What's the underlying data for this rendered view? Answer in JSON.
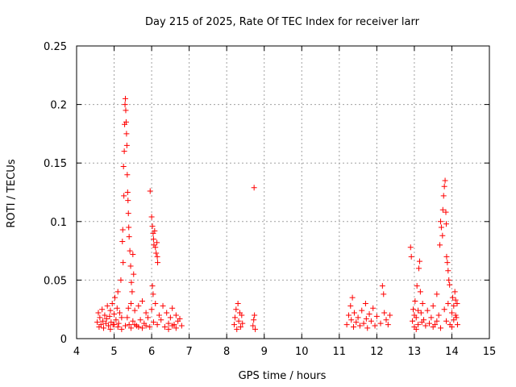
{
  "chart_data": {
    "type": "scatter",
    "title": "Day 215 of 2025, Rate Of TEC Index for receiver larr",
    "xlabel": "GPS time / hours",
    "ylabel": "ROTI / TECUs",
    "xlim": [
      4,
      15
    ],
    "ylim": [
      0,
      0.25
    ],
    "x_ticks": [
      "4",
      "5",
      "6",
      "7",
      "8",
      "9",
      "10",
      "11",
      "12",
      "13",
      "14",
      "15"
    ],
    "y_ticks": [
      "0",
      "0.05",
      "0.1",
      "0.15",
      "0.2",
      "0.25"
    ],
    "grid": true,
    "marker": "+",
    "color": "#ff0000",
    "series": [
      {
        "name": "ROTI",
        "points": [
          [
            4.55,
            0.014
          ],
          [
            4.58,
            0.022
          ],
          [
            4.6,
            0.01
          ],
          [
            4.62,
            0.018
          ],
          [
            4.65,
            0.012
          ],
          [
            4.68,
            0.025
          ],
          [
            4.7,
            0.015
          ],
          [
            4.72,
            0.009
          ],
          [
            4.75,
            0.02
          ],
          [
            4.78,
            0.013
          ],
          [
            4.8,
            0.017
          ],
          [
            4.82,
            0.028
          ],
          [
            4.85,
            0.011
          ],
          [
            4.88,
            0.019
          ],
          [
            4.9,
            0.024
          ],
          [
            4.92,
            0.014
          ],
          [
            4.95,
            0.03
          ],
          [
            4.97,
            0.012
          ],
          [
            5.0,
            0.021
          ],
          [
            5.02,
            0.035
          ],
          [
            5.05,
            0.016
          ],
          [
            5.08,
            0.026
          ],
          [
            5.1,
            0.04
          ],
          [
            5.12,
            0.013
          ],
          [
            5.15,
            0.022
          ],
          [
            5.18,
            0.05
          ],
          [
            5.2,
            0.018
          ],
          [
            5.22,
            0.083
          ],
          [
            5.23,
            0.093
          ],
          [
            5.24,
            0.065
          ],
          [
            5.25,
            0.147
          ],
          [
            5.26,
            0.122
          ],
          [
            5.27,
            0.16
          ],
          [
            5.28,
            0.183
          ],
          [
            5.29,
            0.2
          ],
          [
            5.3,
            0.205
          ],
          [
            5.31,
            0.195
          ],
          [
            5.32,
            0.185
          ],
          [
            5.33,
            0.175
          ],
          [
            5.34,
            0.165
          ],
          [
            5.35,
            0.14
          ],
          [
            5.36,
            0.125
          ],
          [
            5.37,
            0.118
          ],
          [
            5.38,
            0.107
          ],
          [
            5.39,
            0.095
          ],
          [
            5.4,
            0.087
          ],
          [
            5.42,
            0.075
          ],
          [
            5.44,
            0.062
          ],
          [
            5.46,
            0.048
          ],
          [
            5.48,
            0.04
          ],
          [
            5.5,
            0.072
          ],
          [
            5.52,
            0.055
          ],
          [
            5.35,
            0.018
          ],
          [
            5.38,
            0.026
          ],
          [
            5.4,
            0.012
          ],
          [
            5.45,
            0.03
          ],
          [
            5.5,
            0.015
          ],
          [
            5.55,
            0.024
          ],
          [
            5.6,
            0.011
          ],
          [
            5.65,
            0.028
          ],
          [
            5.7,
            0.016
          ],
          [
            5.75,
            0.032
          ],
          [
            5.8,
            0.013
          ],
          [
            5.85,
            0.022
          ],
          [
            5.9,
            0.018
          ],
          [
            5.95,
            0.01
          ],
          [
            5.96,
            0.126
          ],
          [
            6.0,
            0.104
          ],
          [
            6.02,
            0.096
          ],
          [
            6.04,
            0.09
          ],
          [
            6.05,
            0.085
          ],
          [
            6.06,
            0.08
          ],
          [
            6.08,
            0.092
          ],
          [
            6.1,
            0.078
          ],
          [
            6.12,
            0.073
          ],
          [
            6.14,
            0.082
          ],
          [
            6.15,
            0.07
          ],
          [
            6.16,
            0.065
          ],
          [
            6.02,
            0.045
          ],
          [
            6.04,
            0.038
          ],
          [
            6.0,
            0.025
          ],
          [
            6.05,
            0.014
          ],
          [
            6.1,
            0.03
          ],
          [
            6.15,
            0.012
          ],
          [
            6.2,
            0.02
          ],
          [
            6.25,
            0.016
          ],
          [
            6.3,
            0.028
          ],
          [
            6.35,
            0.01
          ],
          [
            6.4,
            0.022
          ],
          [
            6.45,
            0.013
          ],
          [
            6.5,
            0.018
          ],
          [
            6.55,
            0.026
          ],
          [
            6.6,
            0.012
          ],
          [
            6.65,
            0.02
          ],
          [
            6.7,
            0.015
          ],
          [
            6.75,
            0.017
          ],
          [
            5.1,
            0.01
          ],
          [
            5.2,
            0.008
          ],
          [
            5.3,
            0.011
          ],
          [
            5.45,
            0.009
          ],
          [
            5.55,
            0.012
          ],
          [
            5.65,
            0.01
          ],
          [
            5.75,
            0.009
          ],
          [
            5.85,
            0.011
          ],
          [
            4.9,
            0.008
          ],
          [
            5.0,
            0.012
          ],
          [
            6.45,
            0.008
          ],
          [
            6.55,
            0.011
          ],
          [
            6.65,
            0.009
          ],
          [
            6.8,
            0.011
          ],
          [
            8.2,
            0.012
          ],
          [
            8.22,
            0.018
          ],
          [
            8.25,
            0.025
          ],
          [
            8.27,
            0.008
          ],
          [
            8.3,
            0.03
          ],
          [
            8.32,
            0.015
          ],
          [
            8.35,
            0.022
          ],
          [
            8.37,
            0.01
          ],
          [
            8.4,
            0.02
          ],
          [
            8.42,
            0.013
          ],
          [
            8.7,
            0.011
          ],
          [
            8.72,
            0.016
          ],
          [
            8.74,
            0.02
          ],
          [
            8.76,
            0.008
          ],
          [
            8.73,
            0.129
          ],
          [
            11.2,
            0.012
          ],
          [
            11.25,
            0.02
          ],
          [
            11.3,
            0.028
          ],
          [
            11.32,
            0.016
          ],
          [
            11.35,
            0.035
          ],
          [
            11.38,
            0.01
          ],
          [
            11.4,
            0.022
          ],
          [
            11.45,
            0.014
          ],
          [
            11.5,
            0.018
          ],
          [
            11.55,
            0.011
          ],
          [
            11.6,
            0.024
          ],
          [
            11.65,
            0.013
          ],
          [
            11.7,
            0.03
          ],
          [
            11.72,
            0.017
          ],
          [
            11.75,
            0.009
          ],
          [
            11.8,
            0.021
          ],
          [
            11.85,
            0.015
          ],
          [
            11.9,
            0.026
          ],
          [
            11.95,
            0.011
          ],
          [
            12.0,
            0.019
          ],
          [
            12.1,
            0.013
          ],
          [
            12.15,
            0.045
          ],
          [
            12.18,
            0.038
          ],
          [
            12.2,
            0.022
          ],
          [
            12.25,
            0.016
          ],
          [
            12.3,
            0.012
          ],
          [
            12.35,
            0.02
          ],
          [
            12.9,
            0.078
          ],
          [
            12.92,
            0.07
          ],
          [
            12.95,
            0.015
          ],
          [
            12.97,
            0.025
          ],
          [
            13.0,
            0.01
          ],
          [
            13.02,
            0.032
          ],
          [
            13.05,
            0.018
          ],
          [
            13.07,
            0.045
          ],
          [
            13.1,
            0.012
          ],
          [
            13.12,
            0.06
          ],
          [
            13.14,
            0.066
          ],
          [
            13.16,
            0.04
          ],
          [
            13.18,
            0.022
          ],
          [
            13.2,
            0.014
          ],
          [
            13.22,
            0.03
          ],
          [
            13.25,
            0.016
          ],
          [
            13.3,
            0.011
          ],
          [
            13.35,
            0.024
          ],
          [
            13.4,
            0.013
          ],
          [
            13.45,
            0.018
          ],
          [
            13.5,
            0.028
          ],
          [
            13.55,
            0.012
          ],
          [
            13.6,
            0.038
          ],
          [
            13.65,
            0.02
          ],
          [
            13.68,
            0.08
          ],
          [
            13.7,
            0.1
          ],
          [
            13.72,
            0.095
          ],
          [
            13.75,
            0.088
          ],
          [
            13.76,
            0.11
          ],
          [
            13.78,
            0.122
          ],
          [
            13.8,
            0.13
          ],
          [
            13.82,
            0.135
          ],
          [
            13.84,
            0.108
          ],
          [
            13.85,
            0.098
          ],
          [
            13.86,
            0.07
          ],
          [
            13.88,
            0.065
          ],
          [
            13.9,
            0.058
          ],
          [
            13.92,
            0.05
          ],
          [
            13.94,
            0.046
          ],
          [
            13.8,
            0.025
          ],
          [
            13.85,
            0.015
          ],
          [
            13.9,
            0.03
          ],
          [
            13.95,
            0.012
          ],
          [
            14.0,
            0.022
          ],
          [
            14.02,
            0.035
          ],
          [
            14.05,
            0.028
          ],
          [
            14.08,
            0.04
          ],
          [
            14.1,
            0.033
          ],
          [
            14.12,
            0.018
          ],
          [
            14.14,
            0.03
          ],
          [
            14.15,
            0.012
          ],
          [
            13.0,
            0.02
          ],
          [
            13.05,
            0.008
          ],
          [
            13.1,
            0.024
          ],
          [
            13.5,
            0.01
          ],
          [
            13.6,
            0.015
          ],
          [
            13.7,
            0.009
          ],
          [
            14.0,
            0.01
          ],
          [
            14.05,
            0.016
          ],
          [
            14.1,
            0.02
          ]
        ]
      }
    ]
  }
}
